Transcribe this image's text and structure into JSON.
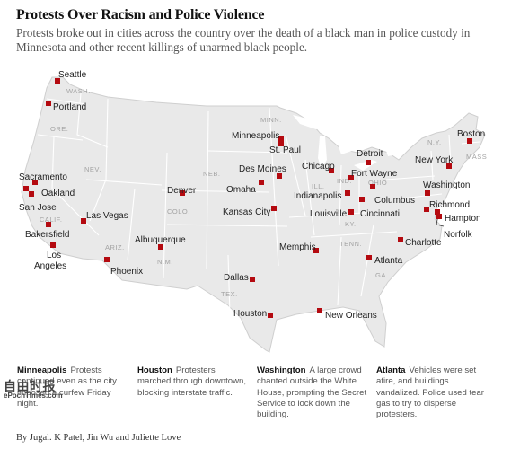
{
  "header": {
    "title": "Protests Over Racism and Police Violence",
    "subtitle": "Protests broke out in cities across the country over the death of a black man in police custody in Minnesota and other recent killings of unarmed black people."
  },
  "colors": {
    "marker": "#b40a10",
    "land": "#e9e9e9",
    "border": "#ffffff",
    "coast": "#cfcfcf"
  },
  "states": [
    {
      "id": "wash",
      "label": "WASH."
    },
    {
      "id": "ore",
      "label": "ORE."
    },
    {
      "id": "nev",
      "label": "NEV."
    },
    {
      "id": "calif",
      "label": "CALIF."
    },
    {
      "id": "ariz",
      "label": "ARIZ."
    },
    {
      "id": "nm",
      "label": "N.M."
    },
    {
      "id": "colo",
      "label": "COLO."
    },
    {
      "id": "neb",
      "label": "NEB."
    },
    {
      "id": "minn",
      "label": "MINN."
    },
    {
      "id": "ill",
      "label": "ILL."
    },
    {
      "id": "ind",
      "label": "IND."
    },
    {
      "id": "ohio",
      "label": "OHIO"
    },
    {
      "id": "ky",
      "label": "KY."
    },
    {
      "id": "tenn",
      "label": "TENN."
    },
    {
      "id": "ga",
      "label": "GA."
    },
    {
      "id": "tex",
      "label": "TEX."
    },
    {
      "id": "ny",
      "label": "N.Y."
    },
    {
      "id": "mass",
      "label": "MASS"
    }
  ],
  "cities": [
    {
      "id": "seattle",
      "name": "Seattle"
    },
    {
      "id": "portland",
      "name": "Portland"
    },
    {
      "id": "sacramento",
      "name": "Sacramento"
    },
    {
      "id": "oakland",
      "name": "Oakland"
    },
    {
      "id": "san-jose",
      "name": "San Jose"
    },
    {
      "id": "bakersfield",
      "name": "Bakersfield"
    },
    {
      "id": "los-angeles",
      "name": "Los\nAngeles"
    },
    {
      "id": "las-vegas",
      "name": "Las Vegas"
    },
    {
      "id": "phoenix",
      "name": "Phoenix"
    },
    {
      "id": "albuquerque",
      "name": "Albuquerque"
    },
    {
      "id": "denver",
      "name": "Denver"
    },
    {
      "id": "minneapolis",
      "name": "Minneapolis"
    },
    {
      "id": "st-paul",
      "name": "St. Paul"
    },
    {
      "id": "des-moines",
      "name": "Des Moines"
    },
    {
      "id": "omaha",
      "name": "Omaha"
    },
    {
      "id": "kansas-city",
      "name": "Kansas City"
    },
    {
      "id": "dallas",
      "name": "Dallas"
    },
    {
      "id": "houston",
      "name": "Houston"
    },
    {
      "id": "chicago",
      "name": "Chicago"
    },
    {
      "id": "detroit",
      "name": "Detroit"
    },
    {
      "id": "fort-wayne",
      "name": "Fort Wayne"
    },
    {
      "id": "indianapolis",
      "name": "Indianapolis"
    },
    {
      "id": "columbus",
      "name": "Columbus"
    },
    {
      "id": "louisville",
      "name": "Louisville"
    },
    {
      "id": "cincinnati",
      "name": "Cincinnati"
    },
    {
      "id": "memphis",
      "name": "Memphis"
    },
    {
      "id": "new-orleans",
      "name": "New Orleans"
    },
    {
      "id": "atlanta",
      "name": "Atlanta"
    },
    {
      "id": "charlotte",
      "name": "Charlotte"
    },
    {
      "id": "washington",
      "name": "Washington"
    },
    {
      "id": "richmond",
      "name": "Richmond"
    },
    {
      "id": "hampton",
      "name": "Hampton"
    },
    {
      "id": "norfolk",
      "name": "Norfolk"
    },
    {
      "id": "new-york",
      "name": "New York"
    },
    {
      "id": "boston",
      "name": "Boston"
    }
  ],
  "notes": [
    {
      "city": "Minneapolis",
      "text": "Protests continued even as the city imposed a curfew Friday night."
    },
    {
      "city": "Houston",
      "text": "Protesters marched through downtown, blocking interstate traffic."
    },
    {
      "city": "Washington",
      "text": "A large crowd chanted outside the White House, prompting the Secret Service to lock down the building."
    },
    {
      "city": "Atlanta",
      "text": "Vehicles were set afire, and buildings vandalized. Police used tear gas to try to disperse protesters."
    }
  ],
  "byline": "By Jugal. K Patel, Jin Wu and Juliette Love",
  "watermark": {
    "line1": "自由时报",
    "line2": "ePochTimes.com"
  }
}
